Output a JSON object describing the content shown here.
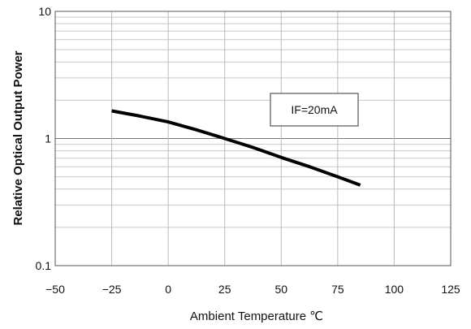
{
  "chart_data": {
    "type": "line",
    "xlabel": "Ambient Temperature ℃",
    "ylabel": "Relative Optical Output Power",
    "xlim": [
      -50,
      125
    ],
    "ylim": [
      0.1,
      10
    ],
    "yscale": "log",
    "grid": true,
    "x_ticks": [
      "−50",
      "−25",
      "0",
      "25",
      "50",
      "75",
      "100",
      "125"
    ],
    "y_ticks": [
      "0.1",
      "1",
      "10"
    ],
    "annotation": "IF=20mA",
    "series": [
      {
        "x": [
          -25,
          -12.5,
          0,
          12.5,
          25,
          37.5,
          50,
          62.5,
          75,
          85
        ],
        "values": [
          1.65,
          1.5,
          1.35,
          1.17,
          1.0,
          0.85,
          0.71,
          0.6,
          0.5,
          0.43
        ]
      }
    ]
  }
}
